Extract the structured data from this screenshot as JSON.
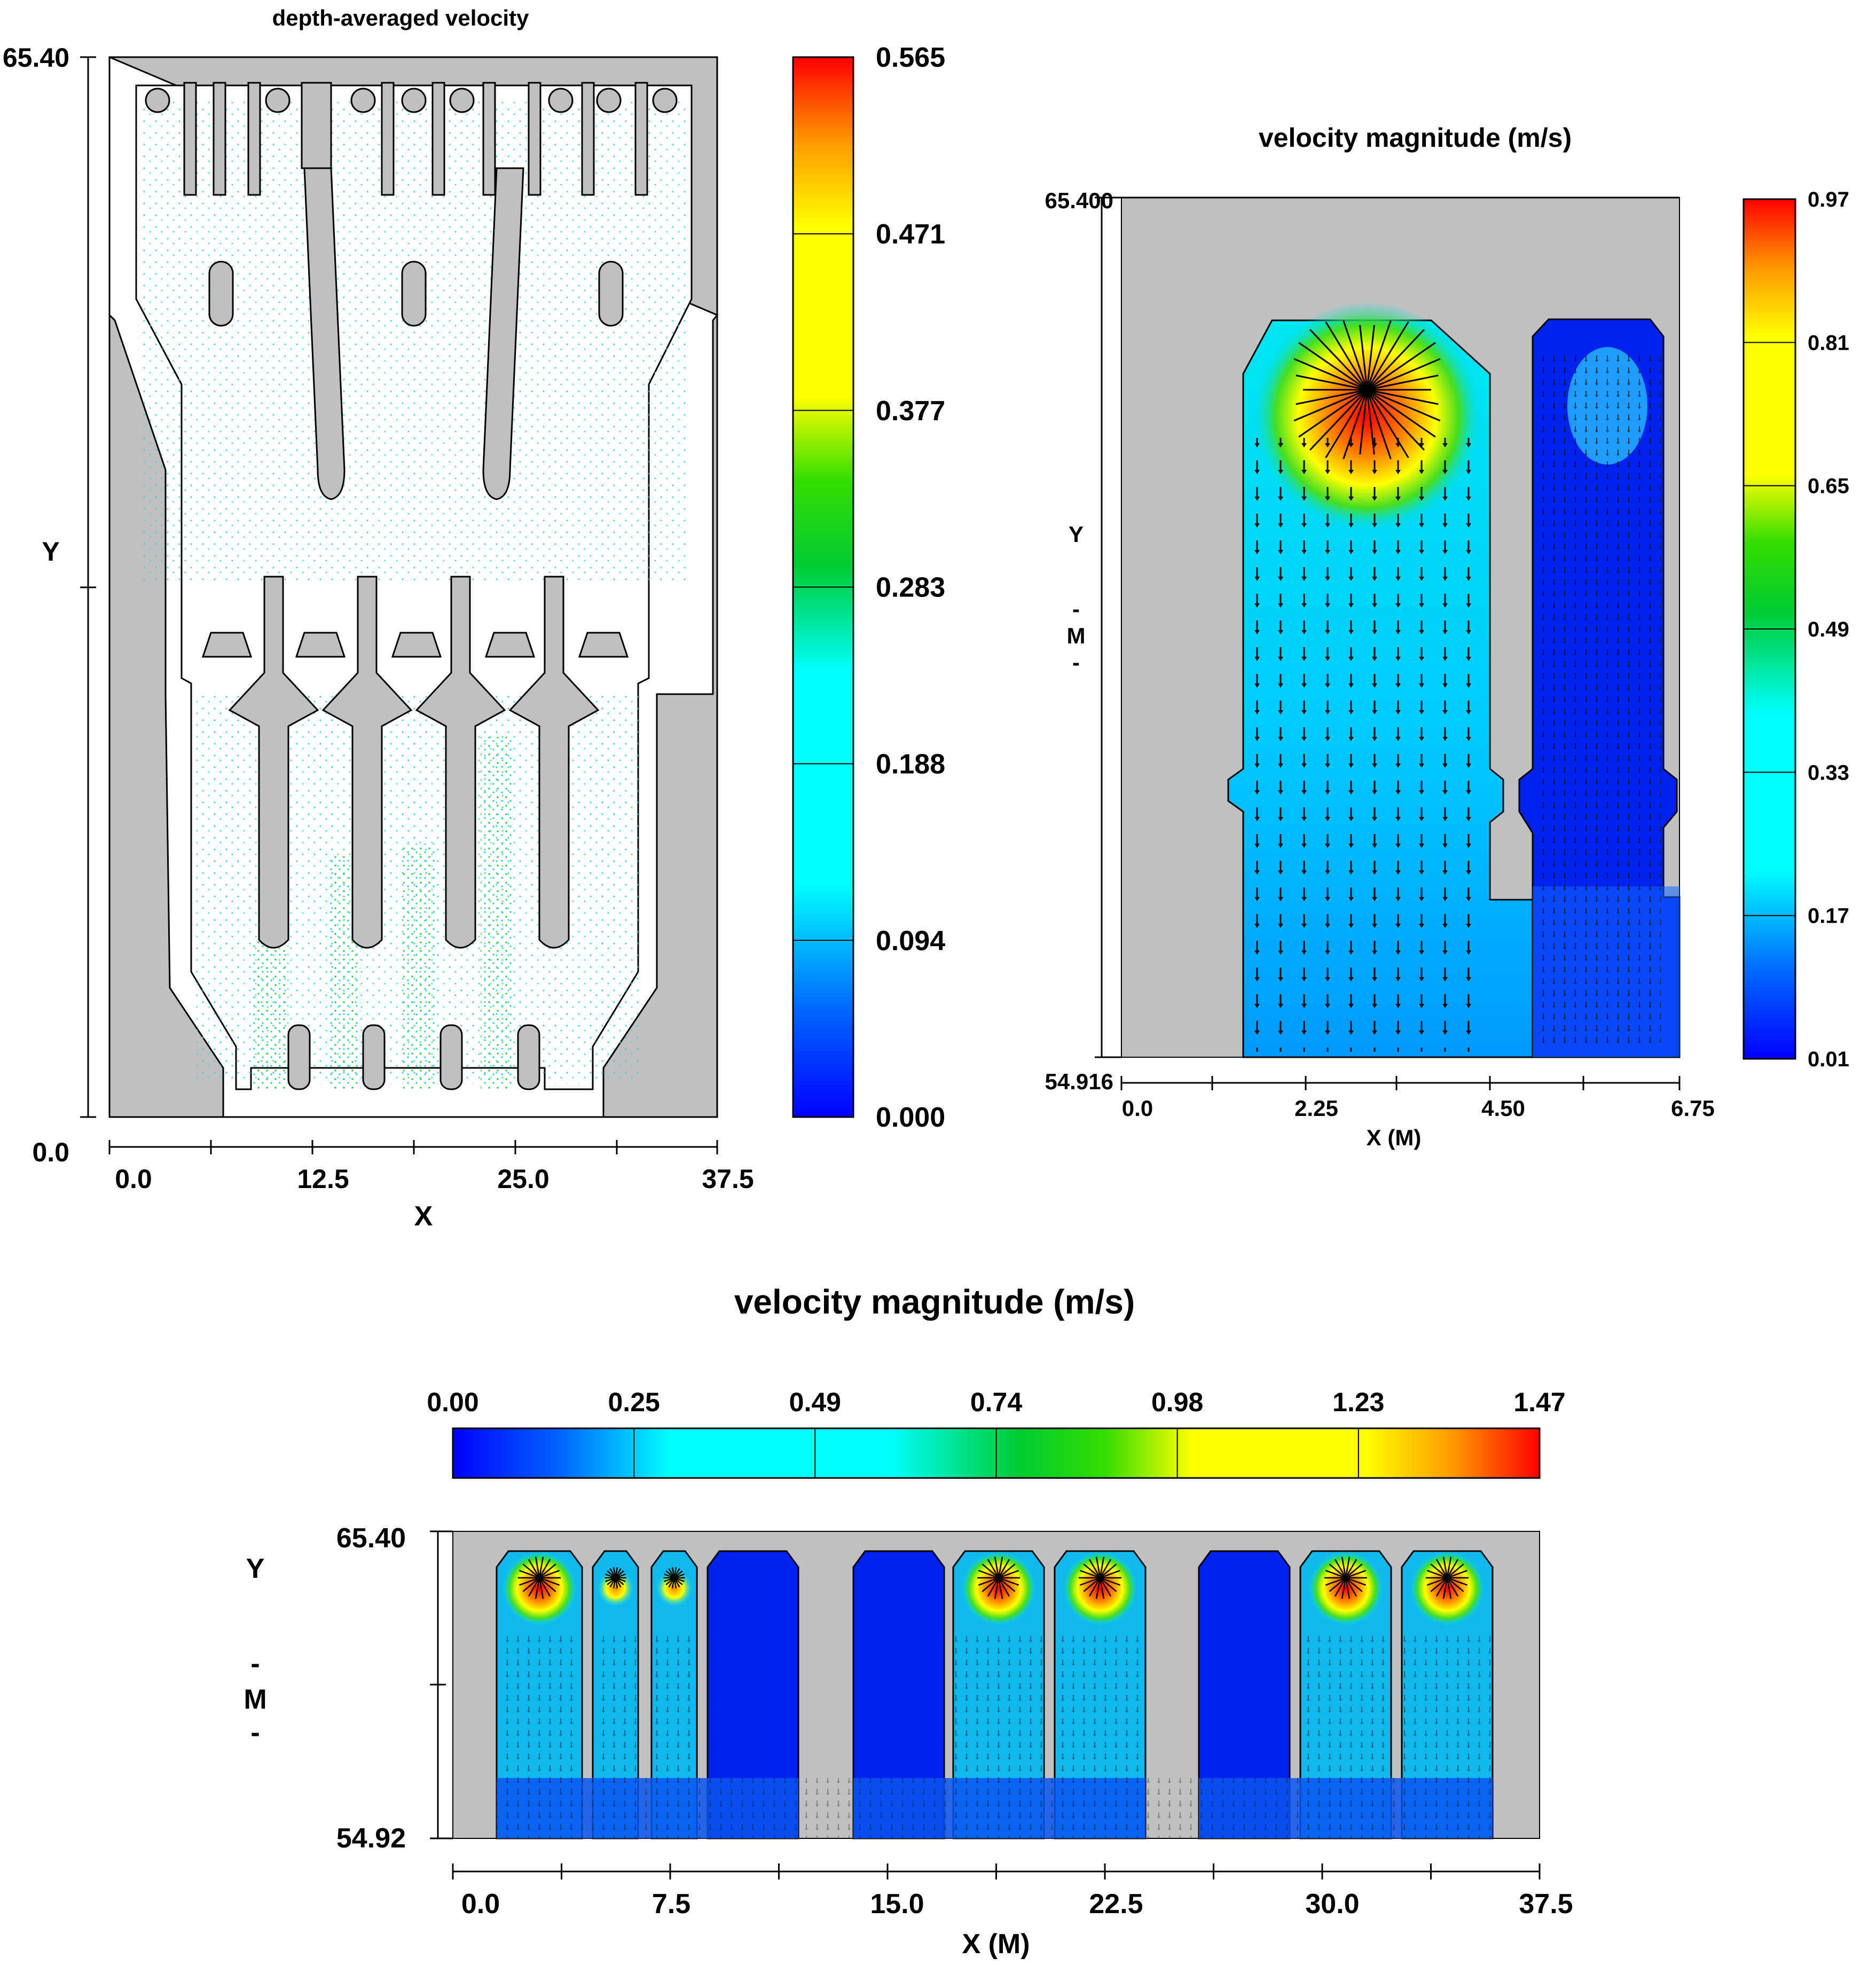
{
  "chart_data": [
    {
      "type": "heatmap",
      "title": "depth-averaged velocity",
      "xlabel": "X",
      "ylabel": "Y",
      "x_ticks": [
        "0.0",
        "12.5",
        "25.0",
        "37.5"
      ],
      "y_ticks": [
        "0.0",
        "65.40"
      ],
      "xlim": [
        0,
        37.5
      ],
      "ylim": [
        0,
        65.4
      ],
      "colorbar": {
        "orientation": "vertical",
        "ticks": [
          "0.000",
          "0.094",
          "0.188",
          "0.283",
          "0.377",
          "0.471",
          "0.565"
        ],
        "range": [
          0,
          0.565
        ]
      },
      "plot_kind": "vector plot of depth-averaged velocity over channel geometry"
    },
    {
      "type": "heatmap",
      "title": "velocity magnitude (m/s)",
      "xlabel": "X (M)",
      "ylabel": "Y",
      "ylabel_unit": [
        "-",
        "M",
        "-"
      ],
      "x_ticks": [
        "0.0",
        "2.25",
        "4.50",
        "6.75"
      ],
      "y_ticks": [
        "54.916",
        "65.400"
      ],
      "xlim": [
        0,
        6.75
      ],
      "ylim": [
        54.916,
        65.4
      ],
      "colorbar": {
        "orientation": "vertical",
        "ticks": [
          "0.01",
          "0.17",
          "0.33",
          "0.49",
          "0.65",
          "0.81",
          "0.97"
        ],
        "range": [
          0.01,
          0.97
        ]
      },
      "peak_region": "top of left chamber"
    },
    {
      "type": "heatmap",
      "title": "velocity magnitude (m/s)",
      "xlabel": "X (M)",
      "ylabel": "Y",
      "ylabel_unit": [
        "-",
        "M",
        "-"
      ],
      "x_ticks": [
        "0.0",
        "7.5",
        "15.0",
        "22.5",
        "30.0",
        "37.5"
      ],
      "y_ticks": [
        "54.92",
        "65.40"
      ],
      "xlim": [
        0,
        37.5
      ],
      "ylim": [
        54.92,
        65.4
      ],
      "colorbar": {
        "orientation": "horizontal",
        "ticks": [
          "0.00",
          "0.25",
          "0.49",
          "0.74",
          "0.98",
          "1.23",
          "1.47"
        ],
        "range": [
          0,
          1.47
        ]
      },
      "active_chambers": [
        1,
        2,
        3,
        6,
        7,
        9,
        10
      ]
    }
  ]
}
